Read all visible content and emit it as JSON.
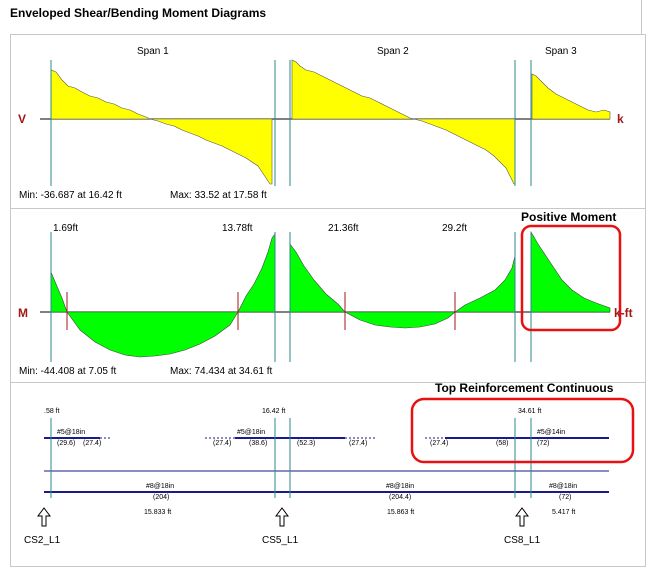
{
  "window": {
    "title": "Enveloped Shear/Bending Moment Diagrams"
  },
  "shear": {
    "axis_label": "V",
    "unit": "k",
    "spans": [
      "Span 1",
      "Span 2",
      "Span 3"
    ],
    "min_text": "Min: -36.687 at 16.42 ft",
    "max_text": "Max: 33.52 at 17.58 ft"
  },
  "moment": {
    "axis_label": "M",
    "unit": "k-ft",
    "inflection_labels": [
      "1.69ft",
      "13.78ft",
      "21.36ft",
      "29.2ft"
    ],
    "min_text": "Min: -44.408 at 7.05 ft",
    "max_text": "Max: 74.434 at 34.61 ft",
    "annotation": "Positive Moment"
  },
  "reinforcement": {
    "annotation": "Top Reinforcement Continuous",
    "top_positions": [
      ".58 ft",
      "16.42 ft",
      "34.61 ft"
    ],
    "top_bars": [
      {
        "label": "#5@18in",
        "values": [
          "(29.6)",
          "(27.4)"
        ]
      },
      {
        "label": "#5@18in",
        "values": [
          "(27.4)",
          "(38.6)",
          "(52.3)",
          "(27.4)"
        ]
      },
      {
        "label": "#5@14in",
        "values": [
          "(27.4)",
          "(58)",
          "(72)"
        ]
      }
    ],
    "bottom_bars": [
      {
        "label": "#8@18in",
        "value": "(204)",
        "length": "15.833 ft"
      },
      {
        "label": "#8@18in",
        "value": "(204.4)",
        "length": "15.863 ft"
      },
      {
        "label": "#8@18in",
        "value": "(72)",
        "length": "5.417 ft"
      }
    ],
    "column_strips": [
      "CS2_L1",
      "CS5_L1",
      "CS8_L1"
    ]
  },
  "colors": {
    "shear_fill": "#ffff00",
    "moment_fill": "#00ff00",
    "highlight": "#e81010",
    "rebar": "#1a1a8a",
    "support": "#2a8a8a"
  }
}
